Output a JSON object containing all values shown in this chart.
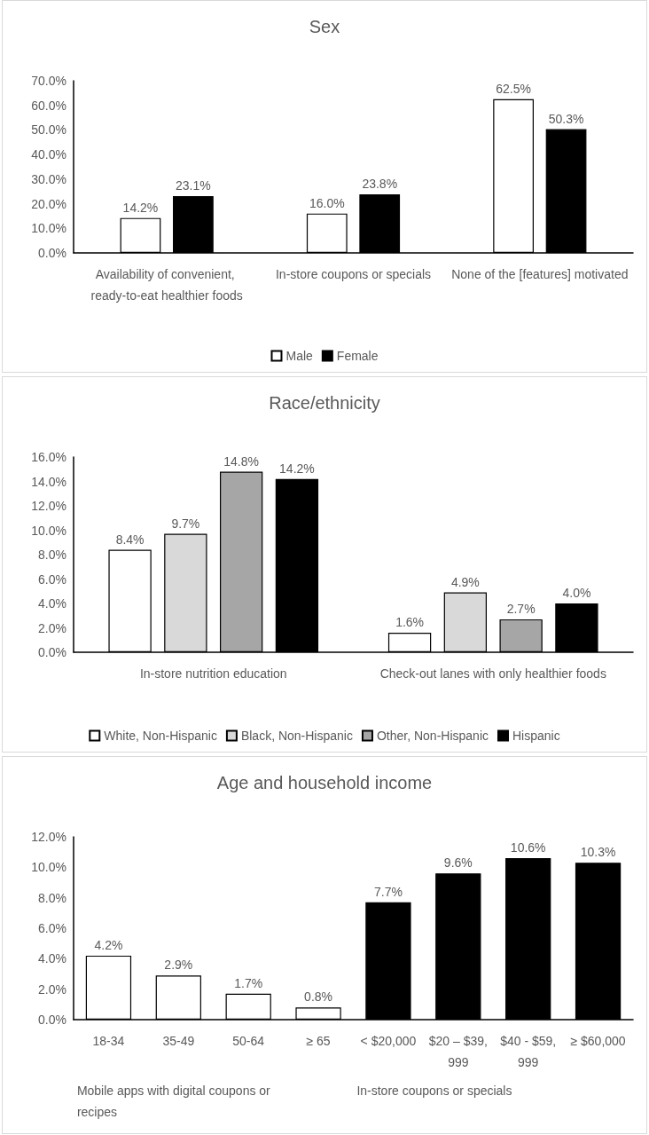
{
  "chart_data": [
    {
      "type": "bar",
      "title": "Sex",
      "categories": [
        "Availability of convenient, ready-to-eat healthier foods",
        "In-store coupons or specials",
        "None of the [features] motivated"
      ],
      "series": [
        {
          "name": "Male",
          "color": "#ffffff",
          "values": [
            14.2,
            16.0,
            62.5
          ],
          "value_labels": [
            "14.2%",
            "16.0%",
            "62.5%"
          ]
        },
        {
          "name": "Female",
          "color": "#000000",
          "values": [
            23.1,
            23.8,
            50.3
          ],
          "value_labels": [
            "23.1%",
            "23.8%",
            "50.3%"
          ]
        }
      ],
      "ylim": [
        0,
        70
      ],
      "yticks": [
        {
          "value": 0,
          "label": "0.0%"
        },
        {
          "value": 10,
          "label": "10.0%"
        },
        {
          "value": 20,
          "label": "20.0%"
        },
        {
          "value": 30,
          "label": "30.0%"
        },
        {
          "value": 40,
          "label": "40.0%"
        },
        {
          "value": 50,
          "label": "50.0%"
        },
        {
          "value": 60,
          "label": "60.0%"
        },
        {
          "value": 70,
          "label": "70.0%"
        }
      ],
      "grid": false,
      "legend": "bottom"
    },
    {
      "type": "bar",
      "title": "Race/ethnicity",
      "categories": [
        "In-store nutrition education",
        "Check-out lanes with only healthier foods"
      ],
      "series": [
        {
          "name": "White, Non-Hispanic",
          "color": "#ffffff",
          "values": [
            8.4,
            1.6
          ],
          "value_labels": [
            "8.4%",
            "1.6%"
          ]
        },
        {
          "name": "Black, Non-Hispanic",
          "color": "#d9d9d9",
          "values": [
            9.7,
            4.9
          ],
          "value_labels": [
            "9.7%",
            "4.9%"
          ]
        },
        {
          "name": "Other, Non-Hispanic",
          "color": "#a6a6a6",
          "values": [
            14.8,
            2.7
          ],
          "value_labels": [
            "14.8%",
            "2.7%"
          ]
        },
        {
          "name": "Hispanic",
          "color": "#000000",
          "values": [
            14.2,
            4.0
          ],
          "value_labels": [
            "14.2%",
            "4.0%"
          ]
        }
      ],
      "ylim": [
        0,
        16
      ],
      "yticks": [
        {
          "value": 0,
          "label": "0.0%"
        },
        {
          "value": 2,
          "label": "2.0%"
        },
        {
          "value": 4,
          "label": "4.0%"
        },
        {
          "value": 6,
          "label": "6.0%"
        },
        {
          "value": 8,
          "label": "8.0%"
        },
        {
          "value": 10,
          "label": "10.0%"
        },
        {
          "value": 12,
          "label": "12.0%"
        },
        {
          "value": 14,
          "label": "14.0%"
        },
        {
          "value": 16,
          "label": "16.0%"
        }
      ],
      "grid": false,
      "legend": "bottom"
    },
    {
      "type": "bar",
      "title": "Age and household income",
      "categories": [
        "18-34",
        "35-49",
        "50-64",
        "≥ 65",
        "< $20,000",
        "$20 – $39,999",
        "$40 - $59,999",
        "≥ $60,000"
      ],
      "series": [
        {
          "color": "#ffffff",
          "values": [
            4.2,
            2.9,
            1.7,
            0.8,
            null,
            null,
            null,
            null
          ],
          "value_labels": [
            "4.2%",
            "2.9%",
            "1.7%",
            "0.8%",
            null,
            null,
            null,
            null
          ]
        },
        {
          "color": "#000000",
          "values": [
            null,
            null,
            null,
            null,
            7.7,
            9.6,
            10.6,
            10.3
          ],
          "value_labels": [
            null,
            null,
            null,
            null,
            "7.7%",
            "9.6%",
            "10.6%",
            "10.3%"
          ]
        }
      ],
      "annotations": [
        "Mobile apps with digital coupons or recipes",
        "In-store coupons or specials"
      ],
      "ylim": [
        0,
        12
      ],
      "yticks": [
        {
          "value": 0,
          "label": "0.0%"
        },
        {
          "value": 2,
          "label": "2.0%"
        },
        {
          "value": 4,
          "label": "4.0%"
        },
        {
          "value": 6,
          "label": "6.0%"
        },
        {
          "value": 8,
          "label": "8.0%"
        },
        {
          "value": 10,
          "label": "10.0%"
        },
        {
          "value": 12,
          "label": "12.0%"
        }
      ],
      "grid": false,
      "legend": false
    }
  ]
}
